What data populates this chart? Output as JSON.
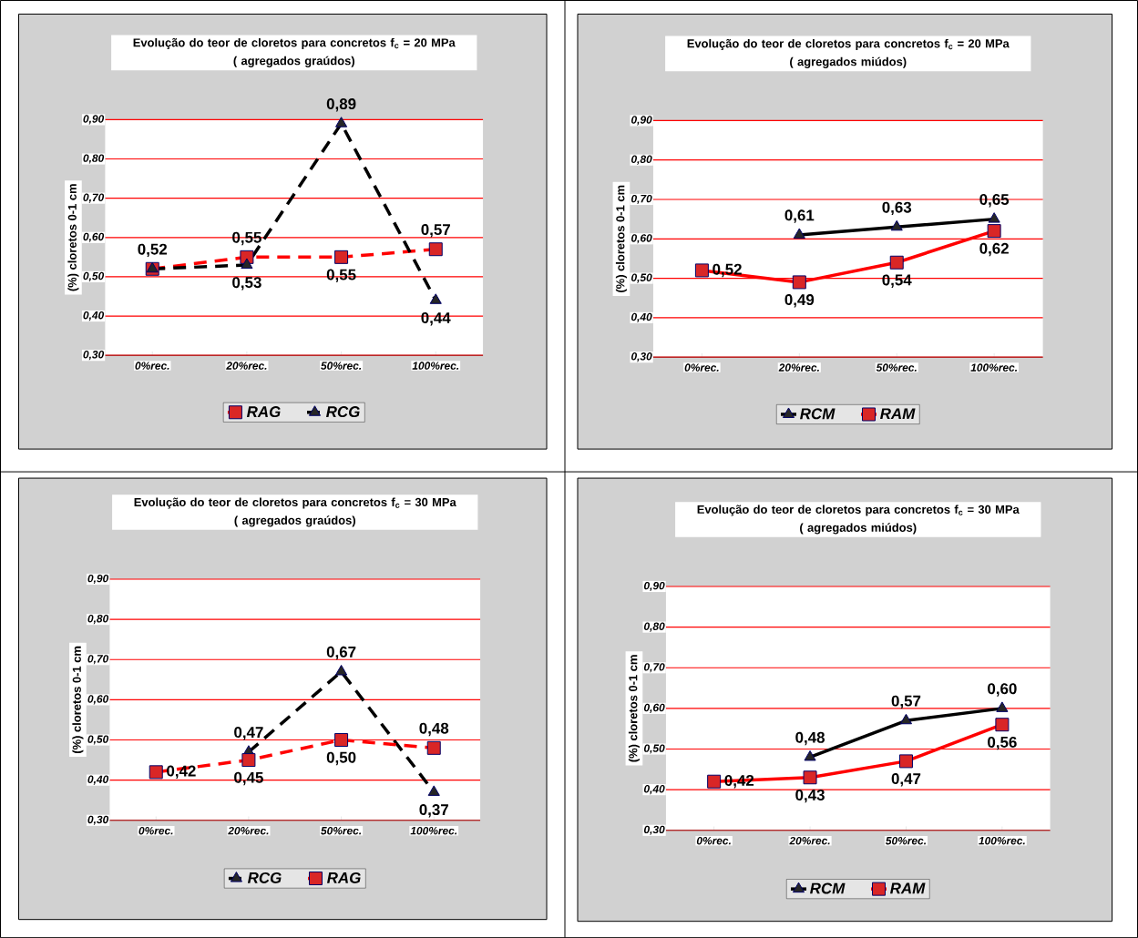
{
  "chart_data": [
    {
      "type": "line",
      "title": "Evolução do teor de cloretos  para concretos f$_{c}$ = 20 MPa",
      "subtitle": "( agregados graúdos)",
      "ylabel": "(%) cloretos  0-1 cm",
      "categories": [
        "0%rec.",
        "20%rec.",
        "50%rec.",
        "100%rec."
      ],
      "ylim": [
        0.3,
        0.9
      ],
      "yticks": [
        {
          "value": 0.3,
          "label": "0,30"
        },
        {
          "value": 0.4,
          "label": "0,40"
        },
        {
          "value": 0.5,
          "label": "0,50"
        },
        {
          "value": 0.6,
          "label": "0,60"
        },
        {
          "value": 0.7,
          "label": "0,70"
        },
        {
          "value": 0.8,
          "label": "0,80"
        },
        {
          "value": 0.9,
          "label": "0,90"
        }
      ],
      "grid": "y",
      "legend": "bottom",
      "series": [
        {
          "name": "RAG",
          "color": "#ff0000",
          "marker": "square",
          "line_style": "dashed",
          "values": [
            0.52,
            0.55,
            0.55,
            0.57
          ],
          "value_labels": [
            "0,52",
            "0,55",
            "0,55",
            "0,57"
          ]
        },
        {
          "name": "RCG",
          "color": "#000000",
          "marker": "triangle",
          "line_style": "dashed",
          "values": [
            0.52,
            0.53,
            0.89,
            0.44
          ],
          "value_labels": [
            null,
            "0,53",
            "0,89",
            "0,44"
          ]
        }
      ]
    },
    {
      "type": "line",
      "title": "Evolução do teor de cloretos  para concretos f$_{c}$ = 20 MPa",
      "subtitle": "( agregados miúdos)",
      "ylabel": "(%) cloretos  0-1 cm",
      "categories": [
        "0%rec.",
        "20%rec.",
        "50%rec.",
        "100%rec."
      ],
      "ylim": [
        0.3,
        0.9
      ],
      "yticks": [
        {
          "value": 0.3,
          "label": "0,30"
        },
        {
          "value": 0.4,
          "label": "0,40"
        },
        {
          "value": 0.5,
          "label": "0,50"
        },
        {
          "value": 0.6,
          "label": "0,60"
        },
        {
          "value": 0.7,
          "label": "0,70"
        },
        {
          "value": 0.8,
          "label": "0,80"
        },
        {
          "value": 0.9,
          "label": "0,90"
        }
      ],
      "grid": "y",
      "legend": "bottom",
      "series": [
        {
          "name": "RCM",
          "color": "#000000",
          "marker": "triangle",
          "line_style": "solid",
          "values": [
            null,
            0.61,
            0.63,
            0.65
          ],
          "value_labels": [
            null,
            "0,61",
            "0,63",
            "0,65"
          ]
        },
        {
          "name": "RAM",
          "color": "#ff0000",
          "marker": "square",
          "line_style": "solid",
          "values": [
            0.52,
            0.49,
            0.54,
            0.62
          ],
          "value_labels": [
            "0,52",
            "0,49",
            "0,54",
            "0,62"
          ]
        }
      ]
    },
    {
      "type": "line",
      "title": "Evolução do teor de cloretos  para concretos f$_{c}$ = 30 MPa",
      "subtitle": "( agregados graúdos)",
      "ylabel": "(%) cloretos  0-1 cm",
      "categories": [
        "0%rec.",
        "20%rec.",
        "50%rec.",
        "100%rec."
      ],
      "ylim": [
        0.3,
        0.9
      ],
      "yticks": [
        {
          "value": 0.3,
          "label": "0,30"
        },
        {
          "value": 0.4,
          "label": "0,40"
        },
        {
          "value": 0.5,
          "label": "0,50"
        },
        {
          "value": 0.6,
          "label": "0,60"
        },
        {
          "value": 0.7,
          "label": "0,70"
        },
        {
          "value": 0.8,
          "label": "0,80"
        },
        {
          "value": 0.9,
          "label": "0,90"
        }
      ],
      "grid": "y",
      "legend": "bottom",
      "series": [
        {
          "name": "RCG",
          "color": "#000000",
          "marker": "triangle",
          "line_style": "dashed",
          "values": [
            null,
            0.47,
            0.67,
            0.37
          ],
          "value_labels": [
            null,
            "0,47",
            "0,67",
            "0,37"
          ]
        },
        {
          "name": "RAG",
          "color": "#ff0000",
          "marker": "square",
          "line_style": "dashed",
          "values": [
            0.42,
            0.45,
            0.5,
            0.48
          ],
          "value_labels": [
            "0,42",
            "0,45",
            "0,50",
            "0,48"
          ]
        }
      ]
    },
    {
      "type": "line",
      "title": "Evolução do teor de cloretos  para concretos f$_{c}$ = 30 MPa",
      "subtitle": "( agregados miúdos)",
      "ylabel": "(%) cloretos  0-1 cm",
      "categories": [
        "0%rec.",
        "20%rec.",
        "50%rec.",
        "100%rec."
      ],
      "ylim": [
        0.3,
        0.9
      ],
      "yticks": [
        {
          "value": 0.3,
          "label": "0,30"
        },
        {
          "value": 0.4,
          "label": "0,40"
        },
        {
          "value": 0.5,
          "label": "0,50"
        },
        {
          "value": 0.6,
          "label": "0,60"
        },
        {
          "value": 0.7,
          "label": "0,70"
        },
        {
          "value": 0.8,
          "label": "0,80"
        },
        {
          "value": 0.9,
          "label": "0,90"
        }
      ],
      "grid": "y",
      "legend": "bottom",
      "series": [
        {
          "name": "RCM",
          "color": "#000000",
          "marker": "triangle",
          "line_style": "solid",
          "values": [
            null,
            0.48,
            0.57,
            0.6
          ],
          "value_labels": [
            null,
            "0,48",
            "0,57",
            "0,60"
          ]
        },
        {
          "name": "RAM",
          "color": "#ff0000",
          "marker": "square",
          "line_style": "solid",
          "values": [
            0.42,
            0.43,
            0.47,
            0.56
          ],
          "value_labels": [
            "0,42",
            "0,43",
            "0,47",
            "0,56"
          ]
        }
      ]
    }
  ]
}
